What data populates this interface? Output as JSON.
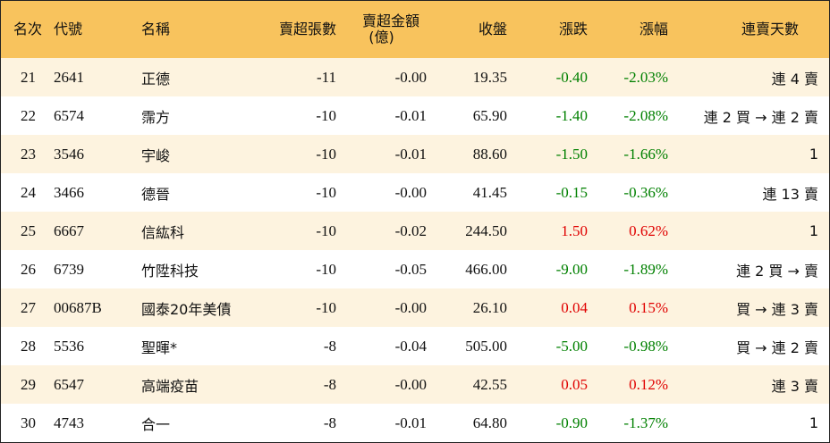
{
  "headers": {
    "rank": "名次",
    "code": "代號",
    "name": "名稱",
    "sell_volume": "賣超張數",
    "sell_amount_line1": "賣超金額",
    "sell_amount_line2": "(億)",
    "close": "收盤",
    "change": "漲跌",
    "change_pct": "漲幅",
    "consecutive_days": "連賣天數"
  },
  "colors": {
    "header_bg": "#f8c35d",
    "odd_row_bg": "#fdf3df",
    "up": "#e00000",
    "down": "#008000"
  },
  "rows": [
    {
      "rank": "21",
      "code": "2641",
      "name": "正德",
      "volume": "-11",
      "amount": "-0.00",
      "close": "19.35",
      "change": "-0.40",
      "pct": "-2.03%",
      "dir": "down",
      "days": "連 4 賣"
    },
    {
      "rank": "22",
      "code": "6574",
      "name": "霈方",
      "volume": "-10",
      "amount": "-0.01",
      "close": "65.90",
      "change": "-1.40",
      "pct": "-2.08%",
      "dir": "down",
      "days": "連 2 買 → 連 2 賣"
    },
    {
      "rank": "23",
      "code": "3546",
      "name": "宇峻",
      "volume": "-10",
      "amount": "-0.01",
      "close": "88.60",
      "change": "-1.50",
      "pct": "-1.66%",
      "dir": "down",
      "days": "1"
    },
    {
      "rank": "24",
      "code": "3466",
      "name": "德晉",
      "volume": "-10",
      "amount": "-0.00",
      "close": "41.45",
      "change": "-0.15",
      "pct": "-0.36%",
      "dir": "down",
      "days": "連 13 賣"
    },
    {
      "rank": "25",
      "code": "6667",
      "name": "信紘科",
      "volume": "-10",
      "amount": "-0.02",
      "close": "244.50",
      "change": "1.50",
      "pct": "0.62%",
      "dir": "up",
      "days": "1"
    },
    {
      "rank": "26",
      "code": "6739",
      "name": "竹陞科技",
      "volume": "-10",
      "amount": "-0.05",
      "close": "466.00",
      "change": "-9.00",
      "pct": "-1.89%",
      "dir": "down",
      "days": "連 2 買 → 賣"
    },
    {
      "rank": "27",
      "code": "00687B",
      "name": "國泰20年美債",
      "volume": "-10",
      "amount": "-0.00",
      "close": "26.10",
      "change": "0.04",
      "pct": "0.15%",
      "dir": "up",
      "days": "買 → 連 3 賣"
    },
    {
      "rank": "28",
      "code": "5536",
      "name": "聖暉*",
      "volume": "-8",
      "amount": "-0.04",
      "close": "505.00",
      "change": "-5.00",
      "pct": "-0.98%",
      "dir": "down",
      "days": "買 → 連 2 賣"
    },
    {
      "rank": "29",
      "code": "6547",
      "name": "高端疫苗",
      "volume": "-8",
      "amount": "-0.00",
      "close": "42.55",
      "change": "0.05",
      "pct": "0.12%",
      "dir": "up",
      "days": "連 3 賣"
    },
    {
      "rank": "30",
      "code": "4743",
      "name": "合一",
      "volume": "-8",
      "amount": "-0.01",
      "close": "64.80",
      "change": "-0.90",
      "pct": "-1.37%",
      "dir": "down",
      "days": "1"
    }
  ]
}
